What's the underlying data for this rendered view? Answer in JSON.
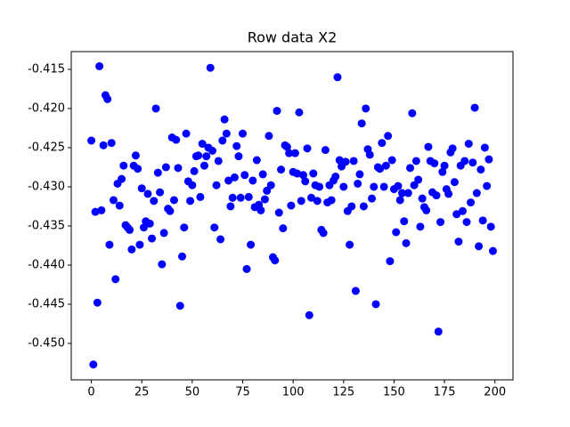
{
  "chart_data": {
    "type": "scatter",
    "title": "Row data X2",
    "color": "#0000ff",
    "x": [
      0,
      1,
      2,
      3,
      4,
      5,
      6,
      7,
      8,
      9,
      10,
      11,
      12,
      13,
      14,
      15,
      16,
      17,
      18,
      19,
      20,
      21,
      22,
      23,
      24,
      25,
      26,
      27,
      28,
      29,
      30,
      31,
      32,
      33,
      34,
      35,
      36,
      37,
      38,
      39,
      40,
      41,
      42,
      43,
      44,
      45,
      46,
      47,
      48,
      49,
      50,
      51,
      52,
      53,
      54,
      55,
      56,
      57,
      58,
      59,
      60,
      61,
      62,
      63,
      64,
      65,
      66,
      67,
      68,
      69,
      70,
      71,
      72,
      73,
      74,
      75,
      76,
      77,
      78,
      79,
      80,
      81,
      82,
      83,
      84,
      85,
      86,
      87,
      88,
      89,
      90,
      91,
      92,
      93,
      94,
      95,
      96,
      97,
      98,
      99,
      100,
      101,
      102,
      103,
      104,
      105,
      106,
      107,
      108,
      109,
      110,
      111,
      112,
      113,
      114,
      115,
      116,
      117,
      118,
      119,
      120,
      121,
      122,
      123,
      124,
      125,
      126,
      127,
      128,
      129,
      130,
      131,
      132,
      133,
      134,
      135,
      136,
      137,
      138,
      139,
      140,
      141,
      142,
      143,
      144,
      145,
      146,
      147,
      148,
      149,
      150,
      151,
      152,
      153,
      154,
      155,
      156,
      157,
      158,
      159,
      160,
      161,
      162,
      163,
      164,
      165,
      166,
      167,
      168,
      169,
      170,
      171,
      172,
      173,
      174,
      175,
      176,
      177,
      178,
      179,
      180,
      181,
      182,
      183,
      184,
      185,
      186,
      187,
      188,
      189,
      190,
      191,
      192,
      193,
      194,
      195,
      196,
      197,
      198,
      199
    ],
    "values": [
      -0.4241,
      -0.4527,
      -0.4332,
      -0.4448,
      -0.4146,
      -0.433,
      -0.4247,
      -0.4183,
      -0.4188,
      -0.4374,
      -0.4244,
      -0.4317,
      -0.4418,
      -0.4296,
      -0.4324,
      -0.429,
      -0.4273,
      -0.4349,
      -0.4352,
      -0.4355,
      -0.438,
      -0.4273,
      -0.426,
      -0.4277,
      -0.4374,
      -0.4302,
      -0.4352,
      -0.4344,
      -0.4309,
      -0.4347,
      -0.4366,
      -0.4318,
      -0.42,
      -0.4282,
      -0.4307,
      -0.4399,
      -0.4359,
      -0.4275,
      -0.4328,
      -0.4331,
      -0.4237,
      -0.4317,
      -0.424,
      -0.4276,
      -0.4452,
      -0.4389,
      -0.4352,
      -0.4232,
      -0.4293,
      -0.4318,
      -0.4298,
      -0.428,
      -0.4261,
      -0.426,
      -0.4313,
      -0.4245,
      -0.4273,
      -0.4261,
      -0.425,
      -0.4148,
      -0.4254,
      -0.4352,
      -0.4298,
      -0.4267,
      -0.4367,
      -0.4241,
      -0.4214,
      -0.4232,
      -0.4292,
      -0.4325,
      -0.4314,
      -0.4288,
      -0.4248,
      -0.4261,
      -0.4314,
      -0.4232,
      -0.4285,
      -0.4405,
      -0.4313,
      -0.4374,
      -0.4292,
      -0.4326,
      -0.4266,
      -0.4323,
      -0.433,
      -0.4284,
      -0.4316,
      -0.4305,
      -0.4235,
      -0.4298,
      -0.439,
      -0.4394,
      -0.4203,
      -0.4333,
      -0.4278,
      -0.4353,
      -0.4247,
      -0.4249,
      -0.4257,
      -0.4324,
      -0.4281,
      -0.4257,
      -0.4283,
      -0.4205,
      -0.4318,
      -0.4285,
      -0.4293,
      -0.4251,
      -0.4464,
      -0.4314,
      -0.4283,
      -0.4298,
      -0.4318,
      -0.43,
      -0.4355,
      -0.4359,
      -0.4253,
      -0.432,
      -0.4298,
      -0.4317,
      -0.4292,
      -0.4287,
      -0.416,
      -0.4266,
      -0.4274,
      -0.43,
      -0.4268,
      -0.4331,
      -0.4374,
      -0.4325,
      -0.4267,
      -0.4433,
      -0.4296,
      -0.4284,
      -0.4219,
      -0.4325,
      -0.42,
      -0.4252,
      -0.4259,
      -0.4315,
      -0.43,
      -0.445,
      -0.4275,
      -0.4277,
      -0.4244,
      -0.43,
      -0.4273,
      -0.4235,
      -0.4395,
      -0.4266,
      -0.4303,
      -0.4358,
      -0.4299,
      -0.4317,
      -0.4308,
      -0.4344,
      -0.4372,
      -0.4308,
      -0.4276,
      -0.4206,
      -0.4298,
      -0.4267,
      -0.4291,
      -0.4351,
      -0.4315,
      -0.4326,
      -0.433,
      -0.4249,
      -0.4267,
      -0.4307,
      -0.427,
      -0.4311,
      -0.4485,
      -0.4345,
      -0.4281,
      -0.4273,
      -0.4303,
      -0.4309,
      -0.4256,
      -0.4251,
      -0.4294,
      -0.4335,
      -0.437,
      -0.4273,
      -0.4331,
      -0.4267,
      -0.4345,
      -0.4245,
      -0.432,
      -0.4269,
      -0.4199,
      -0.4308,
      -0.4376,
      -0.4278,
      -0.4343,
      -0.425,
      -0.4299,
      -0.4265,
      -0.4351,
      -0.4382
    ],
    "xlim": [
      -9.95,
      208.95
    ],
    "ylim": [
      -0.45466,
      -0.41273
    ],
    "xticks": [
      0,
      25,
      50,
      75,
      100,
      125,
      150,
      175,
      200
    ],
    "yticks": [
      {
        "value": -0.45,
        "label": "-0.450"
      },
      -0.445,
      {
        "value": -0.44,
        "label": "-0.440"
      },
      -0.435,
      {
        "value": -0.43,
        "label": "-0.430"
      },
      -0.425,
      {
        "value": -0.42,
        "label": "-0.420"
      },
      -0.415
    ]
  }
}
